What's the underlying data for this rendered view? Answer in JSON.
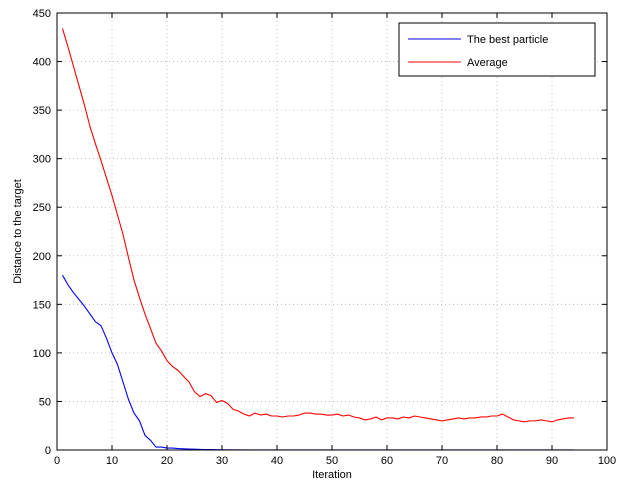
{
  "chart_data": {
    "type": "line",
    "title": "",
    "xlabel": "Iteration",
    "ylabel": "Distance to the target",
    "xlim": [
      0,
      100
    ],
    "ylim": [
      0,
      450
    ],
    "xticks": [
      0,
      10,
      20,
      30,
      40,
      50,
      60,
      70,
      80,
      90,
      100
    ],
    "yticks": [
      0,
      50,
      100,
      150,
      200,
      250,
      300,
      350,
      400,
      450
    ],
    "grid": true,
    "legend_position": "top-right",
    "series": [
      {
        "name": "The best particle",
        "color": "#0000ff",
        "x": [
          1,
          2,
          3,
          4,
          5,
          6,
          7,
          8,
          9,
          10,
          11,
          12,
          13,
          14,
          15,
          16,
          17,
          18,
          19,
          20,
          21,
          22,
          23,
          24,
          25,
          26,
          27,
          28,
          29,
          30,
          35,
          40,
          45,
          50,
          55,
          60,
          65,
          70,
          75,
          80,
          85,
          90,
          94
        ],
        "y": [
          180,
          170,
          162,
          155,
          148,
          140,
          132,
          128,
          115,
          100,
          88,
          70,
          52,
          38,
          30,
          15,
          10,
          3,
          3,
          2,
          2,
          1.5,
          1.2,
          1,
          0.8,
          0.6,
          0.5,
          0.4,
          0.3,
          0.2,
          0.1,
          0.1,
          0.1,
          0.1,
          0.1,
          0.1,
          0.1,
          0.1,
          0.1,
          0.1,
          0.1,
          0.1,
          0.1
        ]
      },
      {
        "name": "Average",
        "color": "#ff0000",
        "x": [
          1,
          2,
          3,
          4,
          5,
          6,
          7,
          8,
          9,
          10,
          11,
          12,
          13,
          14,
          15,
          16,
          17,
          18,
          19,
          20,
          21,
          22,
          23,
          24,
          25,
          26,
          27,
          28,
          29,
          30,
          31,
          32,
          33,
          34,
          35,
          36,
          37,
          38,
          39,
          40,
          41,
          42,
          43,
          44,
          45,
          46,
          47,
          48,
          49,
          50,
          51,
          52,
          53,
          54,
          55,
          56,
          57,
          58,
          59,
          60,
          61,
          62,
          63,
          64,
          65,
          66,
          67,
          68,
          69,
          70,
          71,
          72,
          73,
          74,
          75,
          76,
          77,
          78,
          79,
          80,
          81,
          82,
          83,
          84,
          85,
          86,
          87,
          88,
          89,
          90,
          91,
          92,
          93,
          94
        ],
        "y": [
          434,
          415,
          395,
          375,
          355,
          333,
          315,
          298,
          280,
          262,
          242,
          222,
          198,
          175,
          157,
          140,
          125,
          110,
          102,
          92,
          86,
          82,
          76,
          70,
          60,
          55,
          58,
          56,
          49,
          51,
          48,
          42,
          40,
          37,
          35,
          38,
          36,
          37,
          35,
          35,
          34,
          35,
          35,
          36,
          38,
          38,
          37,
          37,
          36,
          36,
          37,
          35,
          36,
          34,
          33,
          31,
          32,
          34,
          31,
          33,
          33,
          32,
          34,
          33,
          35,
          34,
          33,
          32,
          31,
          30,
          31,
          32,
          33,
          32,
          33,
          33,
          34,
          34,
          35,
          35,
          37,
          34,
          31,
          30,
          29,
          30,
          30,
          31,
          30,
          29,
          31,
          32,
          33,
          33
        ]
      }
    ]
  }
}
